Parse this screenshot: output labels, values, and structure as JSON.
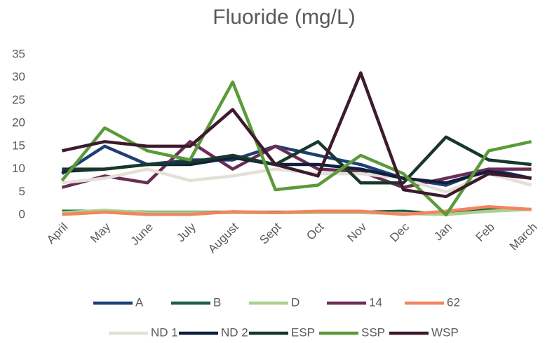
{
  "chart_data": {
    "type": "line",
    "title": "Fluoride (mg/L)",
    "categories": [
      "April",
      "May",
      "June",
      "July",
      "August",
      "Sept",
      "Oct",
      "Nov",
      "Dec",
      "Jan",
      "Feb",
      "March"
    ],
    "ylim": [
      0,
      35
    ],
    "yticks": [
      0,
      5,
      10,
      15,
      20,
      25,
      30,
      35
    ],
    "grid": false,
    "series": [
      {
        "name": "A",
        "color": "#1f3f73",
        "values": [
          9,
          15,
          11,
          12,
          12,
          15,
          13,
          11,
          8,
          6.5,
          10,
          8
        ]
      },
      {
        "name": "B",
        "color": "#1e5e40",
        "values": [
          0.8,
          0.8,
          0.6,
          0.6,
          0.6,
          0.6,
          0.6,
          0.6,
          0.8,
          0.1,
          1.2,
          1.2
        ]
      },
      {
        "name": "D",
        "color": "#a9d18e",
        "values": [
          0.5,
          1,
          0.5,
          0.5,
          0.5,
          0.5,
          0.5,
          0.5,
          0.3,
          0.1,
          0.8,
          1.2
        ]
      },
      {
        "name": "14",
        "color": "#6b2c55",
        "values": [
          6,
          8.5,
          7,
          16,
          10,
          15,
          10,
          9.5,
          6,
          8,
          10,
          10
        ]
      },
      {
        "name": "62",
        "color": "#f4845f",
        "values": [
          0.1,
          0.6,
          0.1,
          0.1,
          0.7,
          0.5,
          0.8,
          0.8,
          0.1,
          0.8,
          1.8,
          1.2
        ]
      },
      {
        "name": "ND 1",
        "color": "#e3e0d8",
        "values": [
          7,
          8,
          10,
          7.5,
          8.5,
          10,
          9,
          9,
          8,
          5,
          9,
          6.5
        ]
      },
      {
        "name": "ND 2",
        "color": "#0f1f3d",
        "values": [
          9.5,
          10,
          11,
          11,
          12.5,
          11,
          11,
          10,
          8,
          7,
          9.5,
          8
        ]
      },
      {
        "name": "ESP",
        "color": "#17382a",
        "values": [
          10,
          10,
          11,
          11.5,
          13,
          11,
          16,
          7,
          7,
          17,
          12,
          11
        ]
      },
      {
        "name": "SSP",
        "color": "#5b9a3a",
        "values": [
          7.5,
          19,
          14,
          12,
          29,
          5.5,
          6.5,
          13,
          9,
          0,
          14,
          16
        ]
      },
      {
        "name": "WSP",
        "color": "#3d1a2e",
        "values": [
          14,
          16,
          15,
          15,
          23,
          11,
          8.5,
          31,
          5.5,
          4,
          9,
          8
        ]
      }
    ]
  }
}
